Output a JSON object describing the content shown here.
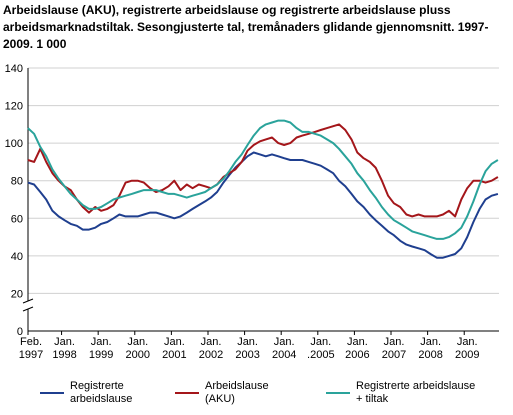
{
  "title": "Arbeidslause (AKU), registrerte arbeidslause og registrerte arbeidslause pluss arbeidsmarknadstiltak. Sesongjusterte tal, tremånaders glidande gjennomsnitt. 1997-2009. 1 000",
  "chart_data": {
    "type": "line",
    "title": "Arbeidslause (AKU), registrerte arbeidslause og registrerte arbeidslause pluss arbeidsmarknadstiltak. Sesongjusterte tal, tremånaders glidande gjennomsnitt. 1997-2009. 1 000",
    "xlabel": "",
    "ylabel": "",
    "ylim": [
      0,
      140
    ],
    "y_ticks": [
      0,
      20,
      40,
      60,
      80,
      100,
      120,
      140
    ],
    "y_axis_break": true,
    "grid": "horizontal",
    "legend_position": "bottom",
    "x_tick_labels": [
      {
        "line1": "Feb.",
        "line2": "1997",
        "x": 1997.083
      },
      {
        "line1": "Jan.",
        "line2": "1998",
        "x": 1998.0
      },
      {
        "line1": "Jan.",
        "line2": "1999",
        "x": 1999.0
      },
      {
        "line1": "Jan.",
        "line2": "2000",
        "x": 2000.0
      },
      {
        "line1": "Jan.",
        "line2": "2001",
        "x": 2001.0
      },
      {
        "line1": "Jan.",
        "line2": "2002",
        "x": 2002.0
      },
      {
        "line1": "Jan.",
        "line2": "2003",
        "x": 2003.0
      },
      {
        "line1": "Jan.",
        "line2": "2004",
        "x": 2004.0
      },
      {
        "line1": "Jan.",
        "line2": ".2005",
        "x": 2005.0
      },
      {
        "line1": "Jan.",
        "line2": "2006",
        "x": 2006.0
      },
      {
        "line1": "Jan.",
        "line2": "2007",
        "x": 2007.0
      },
      {
        "line1": "Jan.",
        "line2": "2008",
        "x": 2008.0
      },
      {
        "line1": "Jan.",
        "line2": "2009",
        "x": 2009.0
      }
    ],
    "xlim": [
      1997.083,
      2009.95
    ],
    "series": [
      {
        "name": "Registrerte arbeidslause",
        "color": "#1f3f8f",
        "x": [
          1997.08,
          1997.25,
          1997.42,
          1997.58,
          1997.75,
          1997.92,
          1998.08,
          1998.25,
          1998.42,
          1998.58,
          1998.75,
          1998.92,
          1999.08,
          1999.25,
          1999.42,
          1999.58,
          1999.75,
          1999.92,
          2000.08,
          2000.25,
          2000.42,
          2000.58,
          2000.75,
          2000.92,
          2001.08,
          2001.25,
          2001.42,
          2001.58,
          2001.75,
          2001.92,
          2002.08,
          2002.25,
          2002.42,
          2002.58,
          2002.75,
          2002.92,
          2003.08,
          2003.25,
          2003.42,
          2003.58,
          2003.75,
          2003.92,
          2004.08,
          2004.25,
          2004.42,
          2004.58,
          2004.75,
          2004.92,
          2005.08,
          2005.25,
          2005.42,
          2005.58,
          2005.75,
          2005.92,
          2006.08,
          2006.25,
          2006.42,
          2006.58,
          2006.75,
          2006.92,
          2007.08,
          2007.25,
          2007.42,
          2007.58,
          2007.75,
          2007.92,
          2008.08,
          2008.25,
          2008.42,
          2008.58,
          2008.75,
          2008.92,
          2009.08,
          2009.25,
          2009.42,
          2009.58,
          2009.75,
          2009.92
        ],
        "values": [
          79,
          78,
          74,
          70,
          64,
          61,
          59,
          57,
          56,
          54,
          54,
          55,
          57,
          58,
          60,
          62,
          61,
          61,
          61,
          62,
          63,
          63,
          62,
          61,
          60,
          61,
          63,
          65,
          67,
          69,
          71,
          74,
          79,
          83,
          87,
          90,
          93,
          95,
          94,
          93,
          94,
          93,
          92,
          91,
          91,
          91,
          90,
          89,
          88,
          86,
          84,
          80,
          77,
          73,
          69,
          66,
          62,
          59,
          56,
          53,
          51,
          48,
          46,
          45,
          44,
          43,
          41,
          39,
          39,
          40,
          41,
          44,
          50,
          58,
          65,
          70,
          72,
          73
        ]
      },
      {
        "name": "Arbeidslause (AKU)",
        "color": "#a4161a",
        "x": [
          1997.08,
          1997.25,
          1997.42,
          1997.58,
          1997.75,
          1997.92,
          1998.08,
          1998.25,
          1998.42,
          1998.58,
          1998.75,
          1998.92,
          1999.08,
          1999.25,
          1999.42,
          1999.58,
          1999.75,
          1999.92,
          2000.08,
          2000.25,
          2000.42,
          2000.58,
          2000.75,
          2000.92,
          2001.08,
          2001.25,
          2001.42,
          2001.58,
          2001.75,
          2001.92,
          2002.08,
          2002.25,
          2002.42,
          2002.58,
          2002.75,
          2002.92,
          2003.08,
          2003.25,
          2003.42,
          2003.58,
          2003.75,
          2003.92,
          2004.08,
          2004.25,
          2004.42,
          2004.58,
          2004.75,
          2004.92,
          2005.08,
          2005.25,
          2005.42,
          2005.58,
          2005.75,
          2005.92,
          2006.08,
          2006.25,
          2006.42,
          2006.58,
          2006.75,
          2006.92,
          2007.08,
          2007.25,
          2007.42,
          2007.58,
          2007.75,
          2007.92,
          2008.08,
          2008.25,
          2008.42,
          2008.58,
          2008.75,
          2008.92,
          2009.08,
          2009.25,
          2009.42,
          2009.58,
          2009.75,
          2009.92
        ],
        "values": [
          91,
          90,
          97,
          90,
          84,
          80,
          77,
          75,
          70,
          66,
          63,
          66,
          64,
          65,
          67,
          72,
          79,
          80,
          80,
          79,
          76,
          74,
          75,
          77,
          80,
          75,
          78,
          76,
          78,
          77,
          76,
          78,
          82,
          84,
          86,
          90,
          96,
          99,
          101,
          102,
          103,
          100,
          99,
          100,
          103,
          104,
          105,
          106,
          107,
          108,
          109,
          110,
          107,
          102,
          95,
          92,
          90,
          87,
          80,
          72,
          68,
          66,
          62,
          61,
          62,
          61,
          61,
          61,
          62,
          64,
          61,
          70,
          76,
          80,
          80,
          79,
          80,
          82
        ]
      },
      {
        "name": "Registrerte arbeidslause + tiltak",
        "color": "#2aa39b",
        "x": [
          1997.08,
          1997.25,
          1997.42,
          1997.58,
          1997.75,
          1997.92,
          1998.08,
          1998.25,
          1998.42,
          1998.58,
          1998.75,
          1998.92,
          1999.08,
          1999.25,
          1999.42,
          1999.58,
          1999.75,
          1999.92,
          2000.08,
          2000.25,
          2000.42,
          2000.58,
          2000.75,
          2000.92,
          2001.08,
          2001.25,
          2001.42,
          2001.58,
          2001.75,
          2001.92,
          2002.08,
          2002.25,
          2002.42,
          2002.58,
          2002.75,
          2002.92,
          2003.08,
          2003.25,
          2003.42,
          2003.58,
          2003.75,
          2003.92,
          2004.08,
          2004.25,
          2004.42,
          2004.58,
          2004.75,
          2004.92,
          2005.08,
          2005.25,
          2005.42,
          2005.58,
          2005.75,
          2005.92,
          2006.08,
          2006.25,
          2006.42,
          2006.58,
          2006.75,
          2006.92,
          2007.08,
          2007.25,
          2007.42,
          2007.58,
          2007.75,
          2007.92,
          2008.08,
          2008.25,
          2008.42,
          2008.58,
          2008.75,
          2008.92,
          2009.08,
          2009.25,
          2009.42,
          2009.58,
          2009.75,
          2009.92
        ],
        "values": [
          108,
          105,
          98,
          93,
          86,
          81,
          77,
          73,
          70,
          67,
          65,
          65,
          66,
          68,
          70,
          71,
          72,
          73,
          74,
          75,
          75,
          75,
          74,
          73,
          73,
          72,
          71,
          72,
          73,
          74,
          76,
          78,
          81,
          85,
          90,
          94,
          99,
          104,
          108,
          110,
          111,
          112,
          112,
          111,
          108,
          106,
          106,
          105,
          104,
          102,
          100,
          97,
          93,
          89,
          84,
          80,
          75,
          71,
          66,
          62,
          59,
          57,
          55,
          53,
          52,
          51,
          50,
          49,
          49,
          50,
          52,
          55,
          61,
          69,
          78,
          85,
          89,
          91
        ]
      }
    ]
  }
}
